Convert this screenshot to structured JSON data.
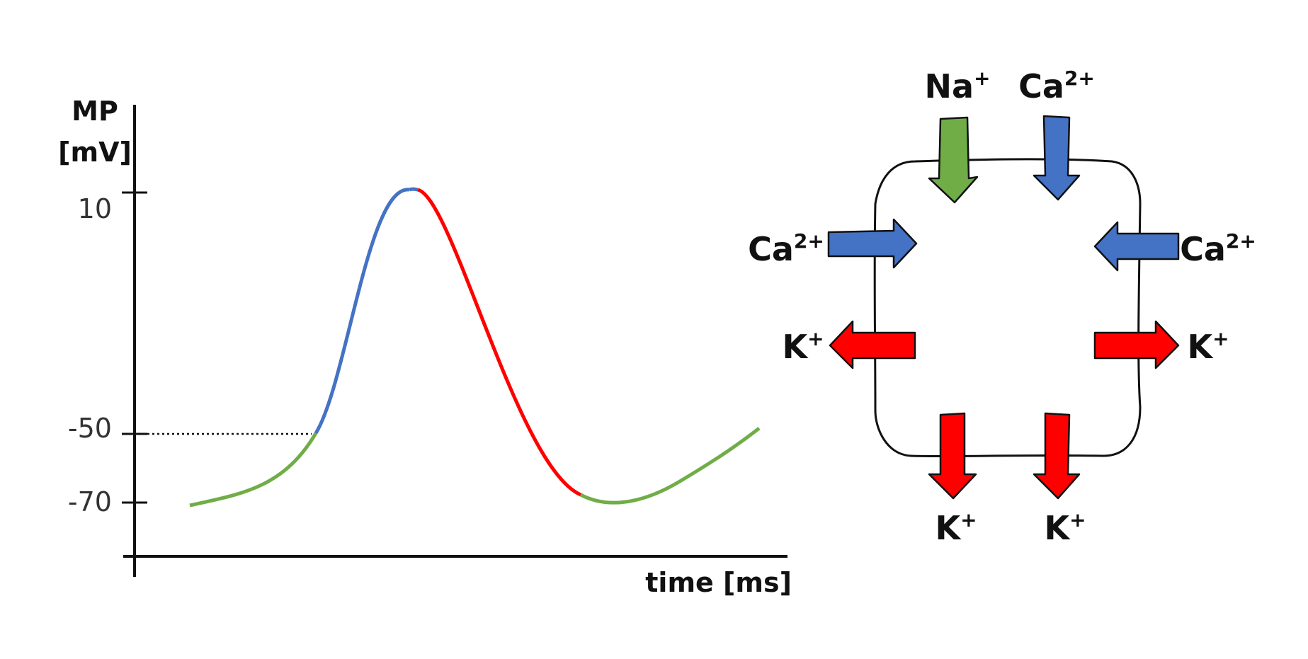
{
  "graph": {
    "y_axis_title_line1": "MP",
    "y_axis_title_line2": "[mV]",
    "x_axis_title": "time [ms]",
    "ticks": [
      {
        "value": 10,
        "label": "10"
      },
      {
        "value": -50,
        "label": "-50"
      },
      {
        "value": -70,
        "label": "-70"
      }
    ],
    "phase_colors": {
      "resting": "#70ad47",
      "depolarization": "#4472c4",
      "repolarization": "#ff0000"
    }
  },
  "cell": {
    "influx": [
      {
        "id": "top-left",
        "ion": "Na",
        "charge": "+",
        "color": "#70ad47"
      },
      {
        "id": "top-right",
        "ion": "Ca",
        "charge": "2+",
        "color": "#4472c4"
      },
      {
        "id": "left",
        "ion": "Ca",
        "charge": "2+",
        "color": "#4472c4"
      },
      {
        "id": "right",
        "ion": "Ca",
        "charge": "2+",
        "color": "#4472c4"
      }
    ],
    "efflux": [
      {
        "id": "left",
        "ion": "K",
        "charge": "+",
        "color": "#ff0000"
      },
      {
        "id": "right",
        "ion": "K",
        "charge": "+",
        "color": "#ff0000"
      },
      {
        "id": "bottom-left",
        "ion": "K",
        "charge": "+",
        "color": "#ff0000"
      },
      {
        "id": "bottom-right",
        "ion": "K",
        "charge": "+",
        "color": "#ff0000"
      }
    ]
  }
}
